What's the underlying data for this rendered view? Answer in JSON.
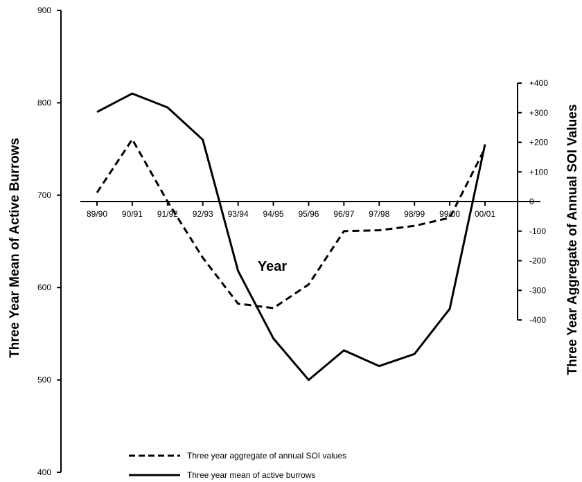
{
  "chart_data": {
    "type": "line",
    "categories": [
      "89/90",
      "90/91",
      "91/92",
      "92/93",
      "93/94",
      "94/95",
      "95/96",
      "96/97",
      "97/98",
      "98/99",
      "99/00",
      "00/01"
    ],
    "xlabel": "Year",
    "y_left": {
      "label": "Three Year Mean of Active Burrows",
      "ylim": [
        400,
        900
      ],
      "ticks": [
        "400",
        "500",
        "600",
        "700",
        "800",
        "900"
      ]
    },
    "y_right": {
      "label": "Three Year Aggregate of Annual SOI Values",
      "ylim": [
        -400,
        400
      ],
      "ticks": [
        "-400",
        "-300",
        "-200",
        "-100",
        "0",
        "+100",
        "+200",
        "+300",
        "+400"
      ]
    },
    "series": [
      {
        "name": "Three year aggregate of annual SOI values",
        "axis": "right",
        "style": "dashed",
        "values": [
          30,
          210,
          0,
          -190,
          -345,
          -360,
          -280,
          -100,
          -97,
          -82,
          -55,
          180
        ]
      },
      {
        "name": "Three year mean of active burrows",
        "axis": "left",
        "style": "solid",
        "values": [
          790,
          810,
          795,
          760,
          618,
          545,
          500,
          532,
          515,
          528,
          577,
          755
        ]
      }
    ]
  }
}
